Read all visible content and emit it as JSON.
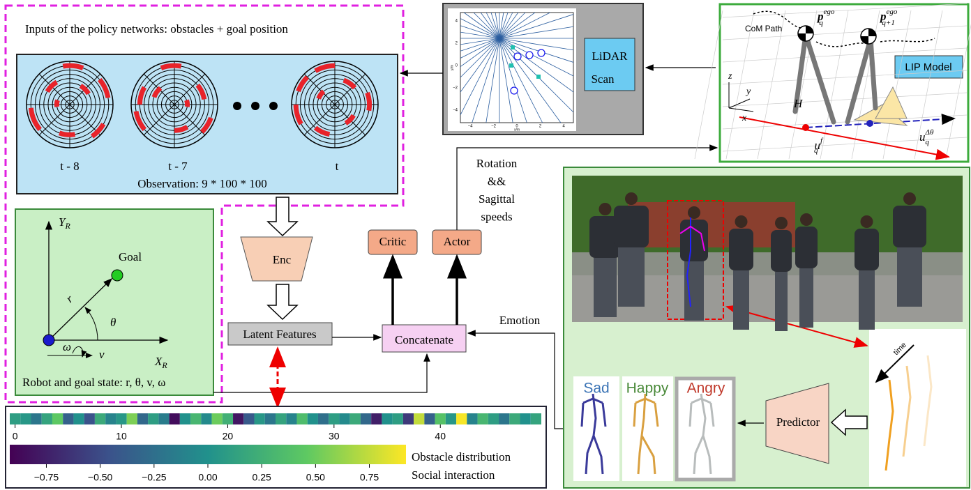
{
  "inputs": {
    "title": "Inputs of the policy networks: obstacles + goal position",
    "frames": [
      "t - 8",
      "t - 7",
      "t"
    ],
    "observation": "Observation: 9 * 100 * 100"
  },
  "lidar": {
    "label_line1": "LiDAR",
    "label_line2": "Scan",
    "x_label": "x/m",
    "y_label": "y/m",
    "xticks": [
      "−4",
      "−2",
      "0",
      "2",
      "4"
    ],
    "yticks": [
      "4",
      "2",
      "0",
      "−2",
      "−4"
    ]
  },
  "lip": {
    "label": "LIP Model",
    "com_path": "CoM Path",
    "p": "p",
    "q": "q",
    "q_plus_1": "q+1",
    "ego": "ego",
    "z": "z",
    "y": "y",
    "x": "x",
    "h": "H",
    "u": "u",
    "f": "f",
    "delta_theta": "Δθ"
  },
  "robot_state": {
    "y_main": "Y",
    "y_sub": "R",
    "x_main": "X",
    "x_sub": "R",
    "goal": "Goal",
    "r": "r",
    "theta": "θ",
    "omega": "ω",
    "v": "v",
    "caption": "Robot and goal state: r, θ, v, ω"
  },
  "network": {
    "enc": "Enc",
    "latent": "Latent Features",
    "critic": "Critic",
    "actor": "Actor",
    "concatenate": "Concatenate",
    "actor_output": [
      "Rotation",
      "&&",
      "Sagittal",
      "speeds"
    ],
    "emotion": "Emotion"
  },
  "features": {
    "values": [
      0.1,
      0.05,
      -0.2,
      0.15,
      0.45,
      -0.35,
      0.0,
      -0.45,
      0.2,
      -0.1,
      0.05,
      0.55,
      -0.3,
      0.1,
      -0.15,
      -0.85,
      0.0,
      0.3,
      -0.05,
      0.5,
      0.25,
      -0.8,
      -0.4,
      0.05,
      -0.2,
      0.15,
      -0.1,
      0.35,
      0.0,
      -0.25,
      0.1,
      -0.05,
      0.2,
      -0.3,
      -0.75,
      0.0,
      0.1,
      -0.6,
      0.75,
      -0.35,
      0.4,
      0.05,
      0.9,
      -0.1,
      0.3,
      0.1,
      -0.2,
      0.2,
      0.0,
      0.15
    ],
    "xlim": [
      -0.5,
      49.5
    ],
    "xticks": [
      0,
      10,
      20,
      30,
      40
    ],
    "clim": [
      -0.92,
      0.92
    ],
    "cticks": [
      {
        "value": -0.75,
        "label": "−0.75"
      },
      {
        "value": -0.5,
        "label": "−0.50"
      },
      {
        "value": -0.25,
        "label": "−0.25"
      },
      {
        "value": 0,
        "label": "0.00"
      },
      {
        "value": 0.25,
        "label": "0.25"
      },
      {
        "value": 0.5,
        "label": "0.50"
      },
      {
        "value": 0.75,
        "label": "0.75"
      }
    ],
    "legend": [
      "Obstacle distribution",
      "Social interaction"
    ]
  },
  "emotion_panel": {
    "emotions": [
      "Sad",
      "Happy",
      "Angry"
    ],
    "predictor": "Predictor",
    "time": "time"
  }
}
